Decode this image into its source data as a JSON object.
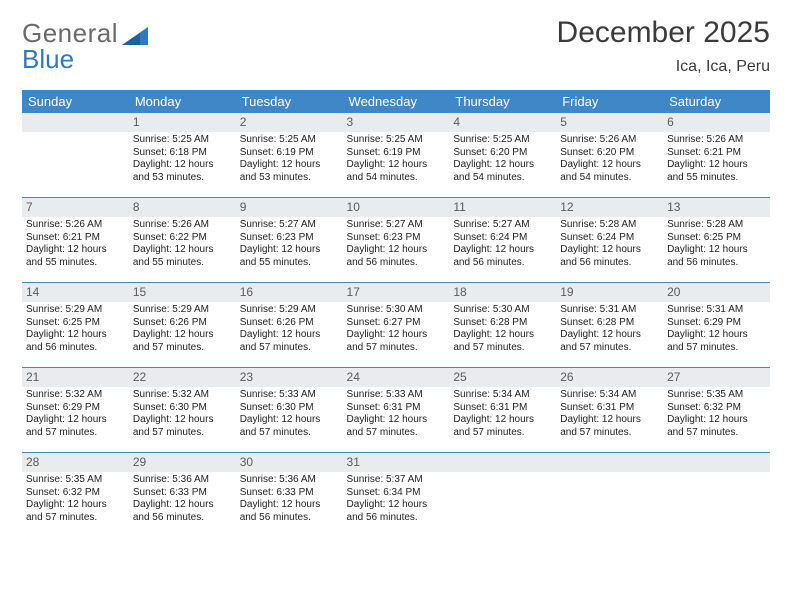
{
  "brand": {
    "part1": "General",
    "part2": "Blue"
  },
  "title": "December 2025",
  "location": "Ica, Ica, Peru",
  "colors": {
    "header_bg": "#3f87c7",
    "header_text": "#ffffff",
    "daynum_bg": "#e9ecef",
    "daynum_text": "#5a5a5a",
    "body_text": "#222222",
    "rule": "#3f87c7",
    "logo_gray": "#6a6a6a",
    "logo_blue": "#2f78c2"
  },
  "weekdays": [
    "Sunday",
    "Monday",
    "Tuesday",
    "Wednesday",
    "Thursday",
    "Friday",
    "Saturday"
  ],
  "weeks": [
    [
      {
        "n": "",
        "sr": "",
        "ss": "",
        "dl": ""
      },
      {
        "n": "1",
        "sr": "Sunrise: 5:25 AM",
        "ss": "Sunset: 6:18 PM",
        "dl": "Daylight: 12 hours and 53 minutes."
      },
      {
        "n": "2",
        "sr": "Sunrise: 5:25 AM",
        "ss": "Sunset: 6:19 PM",
        "dl": "Daylight: 12 hours and 53 minutes."
      },
      {
        "n": "3",
        "sr": "Sunrise: 5:25 AM",
        "ss": "Sunset: 6:19 PM",
        "dl": "Daylight: 12 hours and 54 minutes."
      },
      {
        "n": "4",
        "sr": "Sunrise: 5:25 AM",
        "ss": "Sunset: 6:20 PM",
        "dl": "Daylight: 12 hours and 54 minutes."
      },
      {
        "n": "5",
        "sr": "Sunrise: 5:26 AM",
        "ss": "Sunset: 6:20 PM",
        "dl": "Daylight: 12 hours and 54 minutes."
      },
      {
        "n": "6",
        "sr": "Sunrise: 5:26 AM",
        "ss": "Sunset: 6:21 PM",
        "dl": "Daylight: 12 hours and 55 minutes."
      }
    ],
    [
      {
        "n": "7",
        "sr": "Sunrise: 5:26 AM",
        "ss": "Sunset: 6:21 PM",
        "dl": "Daylight: 12 hours and 55 minutes."
      },
      {
        "n": "8",
        "sr": "Sunrise: 5:26 AM",
        "ss": "Sunset: 6:22 PM",
        "dl": "Daylight: 12 hours and 55 minutes."
      },
      {
        "n": "9",
        "sr": "Sunrise: 5:27 AM",
        "ss": "Sunset: 6:23 PM",
        "dl": "Daylight: 12 hours and 55 minutes."
      },
      {
        "n": "10",
        "sr": "Sunrise: 5:27 AM",
        "ss": "Sunset: 6:23 PM",
        "dl": "Daylight: 12 hours and 56 minutes."
      },
      {
        "n": "11",
        "sr": "Sunrise: 5:27 AM",
        "ss": "Sunset: 6:24 PM",
        "dl": "Daylight: 12 hours and 56 minutes."
      },
      {
        "n": "12",
        "sr": "Sunrise: 5:28 AM",
        "ss": "Sunset: 6:24 PM",
        "dl": "Daylight: 12 hours and 56 minutes."
      },
      {
        "n": "13",
        "sr": "Sunrise: 5:28 AM",
        "ss": "Sunset: 6:25 PM",
        "dl": "Daylight: 12 hours and 56 minutes."
      }
    ],
    [
      {
        "n": "14",
        "sr": "Sunrise: 5:29 AM",
        "ss": "Sunset: 6:25 PM",
        "dl": "Daylight: 12 hours and 56 minutes."
      },
      {
        "n": "15",
        "sr": "Sunrise: 5:29 AM",
        "ss": "Sunset: 6:26 PM",
        "dl": "Daylight: 12 hours and 57 minutes."
      },
      {
        "n": "16",
        "sr": "Sunrise: 5:29 AM",
        "ss": "Sunset: 6:26 PM",
        "dl": "Daylight: 12 hours and 57 minutes."
      },
      {
        "n": "17",
        "sr": "Sunrise: 5:30 AM",
        "ss": "Sunset: 6:27 PM",
        "dl": "Daylight: 12 hours and 57 minutes."
      },
      {
        "n": "18",
        "sr": "Sunrise: 5:30 AM",
        "ss": "Sunset: 6:28 PM",
        "dl": "Daylight: 12 hours and 57 minutes."
      },
      {
        "n": "19",
        "sr": "Sunrise: 5:31 AM",
        "ss": "Sunset: 6:28 PM",
        "dl": "Daylight: 12 hours and 57 minutes."
      },
      {
        "n": "20",
        "sr": "Sunrise: 5:31 AM",
        "ss": "Sunset: 6:29 PM",
        "dl": "Daylight: 12 hours and 57 minutes."
      }
    ],
    [
      {
        "n": "21",
        "sr": "Sunrise: 5:32 AM",
        "ss": "Sunset: 6:29 PM",
        "dl": "Daylight: 12 hours and 57 minutes."
      },
      {
        "n": "22",
        "sr": "Sunrise: 5:32 AM",
        "ss": "Sunset: 6:30 PM",
        "dl": "Daylight: 12 hours and 57 minutes."
      },
      {
        "n": "23",
        "sr": "Sunrise: 5:33 AM",
        "ss": "Sunset: 6:30 PM",
        "dl": "Daylight: 12 hours and 57 minutes."
      },
      {
        "n": "24",
        "sr": "Sunrise: 5:33 AM",
        "ss": "Sunset: 6:31 PM",
        "dl": "Daylight: 12 hours and 57 minutes."
      },
      {
        "n": "25",
        "sr": "Sunrise: 5:34 AM",
        "ss": "Sunset: 6:31 PM",
        "dl": "Daylight: 12 hours and 57 minutes."
      },
      {
        "n": "26",
        "sr": "Sunrise: 5:34 AM",
        "ss": "Sunset: 6:31 PM",
        "dl": "Daylight: 12 hours and 57 minutes."
      },
      {
        "n": "27",
        "sr": "Sunrise: 5:35 AM",
        "ss": "Sunset: 6:32 PM",
        "dl": "Daylight: 12 hours and 57 minutes."
      }
    ],
    [
      {
        "n": "28",
        "sr": "Sunrise: 5:35 AM",
        "ss": "Sunset: 6:32 PM",
        "dl": "Daylight: 12 hours and 57 minutes."
      },
      {
        "n": "29",
        "sr": "Sunrise: 5:36 AM",
        "ss": "Sunset: 6:33 PM",
        "dl": "Daylight: 12 hours and 56 minutes."
      },
      {
        "n": "30",
        "sr": "Sunrise: 5:36 AM",
        "ss": "Sunset: 6:33 PM",
        "dl": "Daylight: 12 hours and 56 minutes."
      },
      {
        "n": "31",
        "sr": "Sunrise: 5:37 AM",
        "ss": "Sunset: 6:34 PM",
        "dl": "Daylight: 12 hours and 56 minutes."
      },
      {
        "n": "",
        "sr": "",
        "ss": "",
        "dl": ""
      },
      {
        "n": "",
        "sr": "",
        "ss": "",
        "dl": ""
      },
      {
        "n": "",
        "sr": "",
        "ss": "",
        "dl": ""
      }
    ]
  ]
}
